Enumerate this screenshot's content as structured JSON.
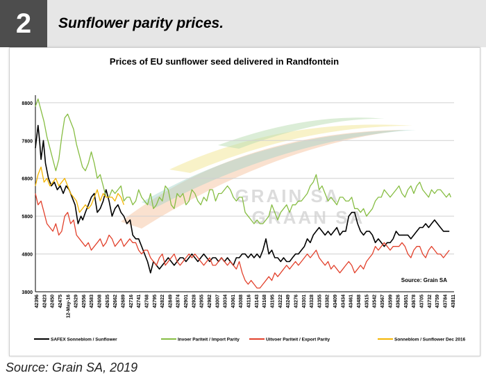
{
  "figure": {
    "number": "2",
    "title": "Sunflower parity prices."
  },
  "source_caption": "Source: Grain SA, 2019",
  "watermark": {
    "line1": "GRAIN SA",
    "line2": "GRAAN SA"
  },
  "chart_data": {
    "type": "line",
    "title": "Prices of EU sunflower seed delivered in Randfontein",
    "annotation": "Source: Grain SA",
    "xlabel": "",
    "ylabel": "",
    "ylim": [
      3800,
      9000
    ],
    "yticks": [
      3800,
      4800,
      5800,
      6800,
      7800,
      8800
    ],
    "xlim": [
      42396,
      43811
    ],
    "xticks": [
      "42396",
      "42423",
      "42450",
      "42475",
      "12-May-16",
      "42529",
      "42556",
      "42583",
      "42608",
      "42635",
      "42662",
      "42689",
      "42716",
      "42741",
      "42768",
      "42795",
      "42822",
      "42849",
      "42874",
      "42901",
      "42928",
      "42955",
      "42982",
      "43007",
      "43034",
      "43061",
      "43088",
      "43116",
      "43143",
      "43168",
      "43195",
      "43222",
      "43249",
      "43276",
      "43301",
      "43328",
      "43355",
      "43382",
      "43409",
      "43434",
      "43461",
      "43488",
      "43515",
      "43542",
      "43567",
      "43599",
      "43626",
      "43651",
      "43678",
      "43705",
      "43732",
      "43759",
      "43784",
      "43811"
    ],
    "grid": "horizontal",
    "legend_position": "bottom",
    "series": [
      {
        "name": "SAFEX Sonneblom / Sunflower",
        "color": "#000000",
        "x": [
          42396,
          42405,
          42410,
          42415,
          42423,
          42430,
          42440,
          42450,
          42460,
          42470,
          42480,
          42490,
          42500,
          42510,
          42520,
          42530,
          42540,
          42550,
          42556,
          42565,
          42575,
          42585,
          42595,
          42605,
          42615,
          42625,
          42635,
          42645,
          42655,
          42665,
          42675,
          42685,
          42695,
          42705,
          42716,
          42725,
          42735,
          42745,
          42755,
          42765,
          42775,
          42785,
          42795,
          42805,
          42815,
          42825,
          42835,
          42845,
          42855,
          42865,
          42875,
          42885,
          42895,
          42905,
          42915,
          42925,
          42935,
          42945,
          42955,
          42965,
          42975,
          42985,
          42995,
          43005,
          43015,
          43025,
          43035,
          43045,
          43055,
          43065,
          43075,
          43085,
          43095,
          43105,
          43115,
          43125,
          43135,
          43145,
          43155,
          43165,
          43175,
          43185,
          43195,
          43205,
          43215,
          43225,
          43235,
          43245,
          43255,
          43265,
          43275,
          43285,
          43295,
          43305,
          43315,
          43325,
          43335,
          43345,
          43355,
          43365,
          43375,
          43385,
          43395,
          43405,
          43415,
          43425,
          43435,
          43445,
          43455,
          43465,
          43475,
          43485,
          43495,
          43505,
          43515,
          43525,
          43535,
          43545,
          43555,
          43565,
          43575,
          43585,
          43595,
          43605,
          43615,
          43625,
          43635,
          43645,
          43655,
          43665,
          43675,
          43685,
          43695,
          43705,
          43715,
          43725,
          43735,
          43745,
          43755,
          43765,
          43775,
          43785,
          43795
        ],
        "values": [
          7600,
          8200,
          7800,
          7300,
          7800,
          7200,
          6800,
          6600,
          6700,
          6500,
          6600,
          6400,
          6600,
          6500,
          6300,
          6100,
          5600,
          5800,
          5700,
          5900,
          6100,
          6300,
          6400,
          5900,
          6000,
          6200,
          6500,
          6200,
          5800,
          6000,
          6100,
          5900,
          5800,
          5600,
          5700,
          5300,
          5200,
          5200,
          5000,
          4800,
          4600,
          4300,
          4600,
          4500,
          4400,
          4500,
          4600,
          4700,
          4600,
          4500,
          4600,
          4700,
          4700,
          4600,
          4700,
          4800,
          4700,
          4600,
          4700,
          4800,
          4700,
          4600,
          4700,
          4700,
          4600,
          4700,
          4600,
          4700,
          4600,
          4500,
          4700,
          4700,
          4800,
          4800,
          4700,
          4800,
          4700,
          4800,
          4700,
          4900,
          5200,
          4800,
          4900,
          4700,
          4700,
          4600,
          4700,
          4600,
          4600,
          4700,
          4800,
          4800,
          4900,
          5000,
          5200,
          5100,
          5300,
          5400,
          5500,
          5400,
          5300,
          5400,
          5300,
          5400,
          5500,
          5300,
          5400,
          5400,
          5800,
          5900,
          5900,
          5600,
          5400,
          5300,
          5400,
          5400,
          5300,
          5100,
          5200,
          5100,
          5000,
          5100,
          5100,
          5200,
          5400,
          5300,
          5300,
          5300,
          5300,
          5200,
          5300,
          5400,
          5500,
          5500,
          5600,
          5500,
          5600,
          5700,
          5600,
          5500,
          5400,
          5400,
          5400
        ],
        "note": "SAFEX ends around 43795"
      },
      {
        "name": "Invoer Pariteit / Import Parity",
        "color": "#86bd42",
        "x": [
          42396,
          42405,
          42415,
          42425,
          42435,
          42445,
          42455,
          42465,
          42475,
          42485,
          42495,
          42505,
          42515,
          42525,
          42535,
          42545,
          42555,
          42565,
          42575,
          42585,
          42595,
          42605,
          42615,
          42625,
          42635,
          42645,
          42655,
          42665,
          42675,
          42685,
          42695,
          42705,
          42715,
          42725,
          42735,
          42745,
          42755,
          42765,
          42775,
          42785,
          42795,
          42805,
          42815,
          42825,
          42835,
          42845,
          42855,
          42865,
          42875,
          42885,
          42895,
          42905,
          42915,
          42925,
          42935,
          42945,
          42955,
          42965,
          42975,
          42985,
          42995,
          43005,
          43015,
          43025,
          43035,
          43045,
          43055,
          43065,
          43075,
          43085,
          43095,
          43105,
          43115,
          43125,
          43135,
          43145,
          43155,
          43165,
          43175,
          43185,
          43195,
          43205,
          43215,
          43225,
          43235,
          43245,
          43255,
          43265,
          43275,
          43285,
          43295,
          43305,
          43315,
          43325,
          43335,
          43345,
          43355,
          43365,
          43375,
          43385,
          43395,
          43405,
          43415,
          43425,
          43435,
          43445,
          43455,
          43465,
          43475,
          43485,
          43495,
          43505,
          43515,
          43525,
          43535,
          43545,
          43555,
          43565,
          43575,
          43585,
          43595,
          43605,
          43615,
          43625,
          43635,
          43645,
          43655,
          43665,
          43675,
          43685,
          43695,
          43705,
          43715,
          43725,
          43735,
          43745,
          43755,
          43765,
          43775,
          43785,
          43795,
          43800
        ],
        "values": [
          8700,
          8900,
          8600,
          8300,
          7900,
          7600,
          7300,
          7000,
          7300,
          7900,
          8400,
          8500,
          8300,
          8100,
          7700,
          7400,
          7100,
          7000,
          7200,
          7500,
          7200,
          6800,
          6900,
          6600,
          6300,
          6300,
          6500,
          6400,
          6500,
          6600,
          6200,
          6300,
          6300,
          6100,
          6200,
          6500,
          6300,
          6200,
          6100,
          6400,
          6000,
          6100,
          6300,
          6200,
          6600,
          6500,
          6100,
          6000,
          6400,
          6300,
          6400,
          6100,
          6200,
          6500,
          6400,
          6200,
          6100,
          6300,
          6200,
          6500,
          6500,
          6200,
          6400,
          6400,
          6500,
          6600,
          6500,
          6300,
          6200,
          6300,
          6300,
          5900,
          5800,
          5700,
          5600,
          5700,
          5600,
          5600,
          5700,
          5800,
          6100,
          5900,
          5700,
          5900,
          6000,
          6100,
          5900,
          6100,
          6100,
          6200,
          6200,
          6300,
          6400,
          6600,
          6700,
          6900,
          6500,
          6600,
          6400,
          6200,
          6300,
          6200,
          6100,
          6300,
          6300,
          6200,
          6200,
          6300,
          6000,
          6000,
          5900,
          6000,
          5800,
          5900,
          6000,
          6200,
          6300,
          6300,
          6500,
          6400,
          6300,
          6400,
          6500,
          6600,
          6400,
          6300,
          6500,
          6600,
          6400,
          6600,
          6700,
          6500,
          6400,
          6300,
          6500,
          6400,
          6500,
          6500,
          6400,
          6300,
          6400,
          6300
        ],
        "note": "Import parity ends around 43800"
      },
      {
        "name": "Uitvoer Pariteit / Export Parity",
        "color": "#e2402b",
        "x": [
          42396,
          42405,
          42415,
          42425,
          42435,
          42445,
          42455,
          42465,
          42475,
          42485,
          42495,
          42505,
          42515,
          42525,
          42535,
          42545,
          42555,
          42565,
          42575,
          42585,
          42595,
          42605,
          42615,
          42625,
          42635,
          42645,
          42655,
          42665,
          42675,
          42685,
          42695,
          42705,
          42715,
          42725,
          42735,
          42745,
          42755,
          42765,
          42775,
          42785,
          42795,
          42805,
          42815,
          42825,
          42835,
          42845,
          42855,
          42865,
          42875,
          42885,
          42895,
          42905,
          42915,
          42925,
          42935,
          42945,
          42955,
          42965,
          42975,
          42985,
          42995,
          43005,
          43015,
          43025,
          43035,
          43045,
          43055,
          43065,
          43075,
          43085,
          43095,
          43105,
          43115,
          43125,
          43135,
          43145,
          43155,
          43165,
          43175,
          43185,
          43195,
          43205,
          43215,
          43225,
          43235,
          43245,
          43255,
          43265,
          43275,
          43285,
          43295,
          43305,
          43315,
          43325,
          43335,
          43345,
          43355,
          43365,
          43375,
          43385,
          43395,
          43405,
          43415,
          43425,
          43435,
          43445,
          43455,
          43465,
          43475,
          43485,
          43495,
          43505,
          43515,
          43525,
          43535,
          43545,
          43555,
          43565,
          43575,
          43585,
          43595,
          43605,
          43615,
          43625,
          43635,
          43645,
          43655,
          43665,
          43675,
          43685,
          43695,
          43705,
          43715,
          43725,
          43735,
          43745,
          43755,
          43765,
          43775,
          43785,
          43795
        ],
        "values": [
          6400,
          6100,
          6200,
          5900,
          5600,
          5500,
          5400,
          5600,
          5300,
          5400,
          5800,
          5900,
          5600,
          5700,
          5300,
          5200,
          5100,
          5000,
          5100,
          4900,
          5000,
          5100,
          5200,
          5000,
          5100,
          5300,
          5200,
          5000,
          5100,
          5200,
          5000,
          5100,
          5200,
          5100,
          5100,
          4900,
          4800,
          4900,
          4900,
          4700,
          4600,
          4500,
          4700,
          4800,
          4500,
          4600,
          4700,
          4800,
          4600,
          4500,
          4600,
          4700,
          4800,
          4700,
          4800,
          4700,
          4600,
          4500,
          4600,
          4700,
          4500,
          4500,
          4600,
          4700,
          4600,
          4500,
          4600,
          4500,
          4400,
          4600,
          4300,
          4100,
          4000,
          4100,
          4000,
          3900,
          3900,
          4000,
          4100,
          4200,
          4100,
          4300,
          4200,
          4300,
          4400,
          4500,
          4400,
          4500,
          4600,
          4500,
          4600,
          4700,
          4800,
          4700,
          4800,
          4900,
          4700,
          4600,
          4500,
          4600,
          4400,
          4500,
          4400,
          4300,
          4400,
          4500,
          4600,
          4500,
          4300,
          4400,
          4500,
          4400,
          4600,
          4700,
          4800,
          5000,
          4900,
          5000,
          5100,
          5000,
          4900,
          5000,
          5000,
          5000,
          5100,
          5000,
          4800,
          4700,
          4900,
          5000,
          5000,
          4800,
          4700,
          4900,
          5000,
          4900,
          4800,
          4800,
          4700,
          4800,
          4900
        ],
        "note": "Export parity"
      },
      {
        "name": "Sonneblom / Sunflower Dec 2016",
        "color": "#f4b400",
        "x": [
          42396,
          42405,
          42415,
          42425,
          42435,
          42445,
          42455,
          42465,
          42475,
          42485,
          42495,
          42505,
          42515,
          42525,
          42535,
          42545,
          42555,
          42565,
          42575,
          42585,
          42595,
          42605,
          42615,
          42625,
          42635,
          42645,
          42655,
          42665,
          42675,
          42685,
          42695
        ],
        "values": [
          6600,
          6900,
          7100,
          6700,
          6800,
          6600,
          6700,
          6800,
          6600,
          6700,
          6800,
          6600,
          6400,
          6300,
          6200,
          5900,
          6000,
          6100,
          6000,
          6100,
          6300,
          6500,
          6200,
          6400,
          6300,
          6300,
          6300,
          6200,
          6400,
          6300,
          6100
        ]
      }
    ]
  }
}
